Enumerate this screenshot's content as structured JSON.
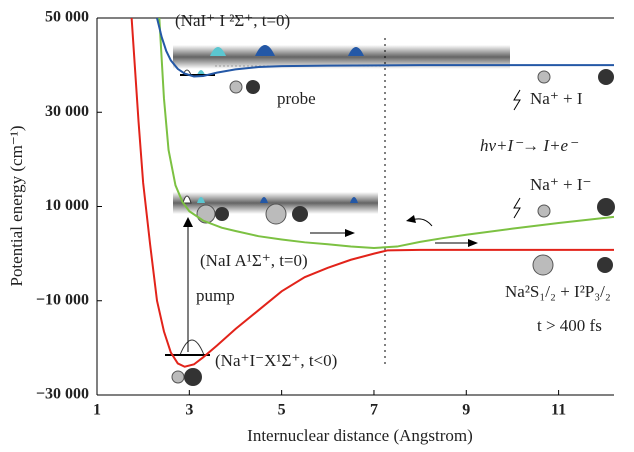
{
  "chart_data": {
    "type": "line",
    "x_label": "Internuclear distance (Angstrom)",
    "y_label": "Potential energy (cm⁻¹)",
    "xlim": [
      1,
      12.2
    ],
    "ylim": [
      -30000,
      50000
    ],
    "xticks": [
      1,
      3,
      5,
      7,
      9,
      11
    ],
    "yticks": [
      {
        "value": -30000,
        "label": "−30 000"
      },
      {
        "value": -10000,
        "label": "−10 000"
      },
      {
        "value": 10000,
        "label": "10 000"
      },
      {
        "value": 30000,
        "label": "30 000"
      },
      {
        "value": 50000,
        "label": "50 000"
      }
    ],
    "series": [
      {
        "color": "#e2231a",
        "x": [
          1.75,
          1.9,
          2.0,
          2.15,
          2.3,
          2.45,
          2.6,
          2.75,
          2.9,
          3.1,
          3.3,
          3.6,
          4.0,
          4.5,
          5.0,
          5.5,
          6.0,
          6.5,
          7.0,
          7.3,
          8.0,
          9.0,
          10.0,
          11.0,
          12.2
        ],
        "values": [
          50000,
          28000,
          15000,
          2000,
          -10000,
          -16500,
          -21000,
          -23300,
          -24000,
          -23500,
          -22000,
          -19500,
          -16000,
          -12000,
          -8000,
          -5000,
          -3000,
          -1300,
          0,
          700,
          800,
          800,
          800,
          800,
          800
        ]
      },
      {
        "color": "#7cc142",
        "x": [
          2.35,
          2.45,
          2.55,
          2.7,
          2.85,
          3.0,
          3.3,
          3.7,
          4.0,
          4.5,
          5.0,
          5.5,
          6.0,
          6.5,
          7.0,
          7.5,
          8.0,
          8.5,
          9.0,
          10.0,
          11.0,
          12.2
        ],
        "values": [
          50000,
          33000,
          22000,
          14500,
          11000,
          9000,
          7000,
          5500,
          4800,
          3700,
          3000,
          2400,
          2000,
          1500,
          1200,
          1500,
          2500,
          3300,
          4000,
          5300,
          6500,
          7800
        ]
      },
      {
        "color": "#2458a6",
        "x": [
          2.3,
          2.4,
          2.5,
          2.6,
          2.75,
          2.9,
          3.1,
          3.3,
          3.6,
          4.0,
          4.5,
          5.0,
          6.0,
          8.0,
          10.0,
          12.2
        ],
        "values": [
          50000,
          46000,
          43000,
          41000,
          39200,
          38200,
          37600,
          37700,
          38400,
          39100,
          39600,
          39800,
          39900,
          40000,
          40000,
          40000
        ]
      }
    ],
    "annotations": [
      "(NaI⁺ I ²Σ⁺, t=0)",
      "probe",
      "Na⁺  +  I",
      "hv+I⁻→ I+e⁻",
      "Na⁺  +  I⁻",
      "(NaI A¹Σ⁺, t=0)",
      "pump",
      "Na²S₁/₂ + I²P₃/₂",
      "t > 400 fs",
      "(Na⁺I⁻X¹Σ⁺, t<0)"
    ]
  }
}
